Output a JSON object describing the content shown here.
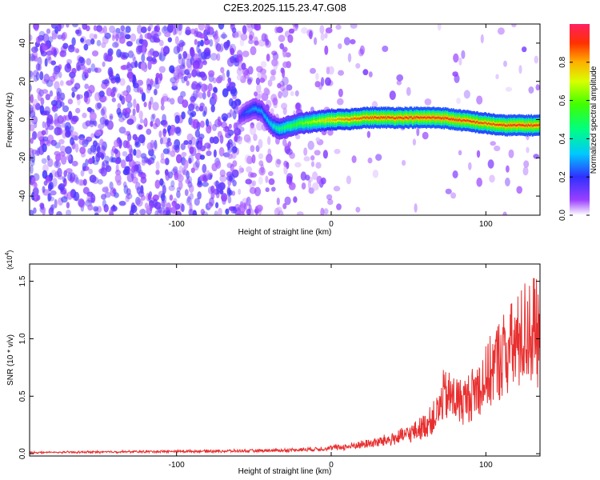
{
  "title": "C2E3.2025.115.23.47.G08",
  "chart_data": [
    {
      "type": "heatmap",
      "xlabel": "Height of straight line (km)",
      "ylabel": "Frequency (Hz)",
      "xlim": [
        -195,
        135
      ],
      "ylim": [
        -50,
        50
      ],
      "x_ticks": [
        -100,
        0,
        100
      ],
      "x_tick_labels": [
        "-100",
        "0",
        "100"
      ],
      "y_ticks": [
        -40,
        -20,
        0,
        20,
        40
      ],
      "y_tick_labels": [
        "-40",
        "-20",
        "0",
        "20",
        "40"
      ],
      "colorbar": {
        "label": "Normalized spectral amplitude",
        "range": [
          0.0,
          1.0
        ],
        "ticks": [
          0.0,
          0.2,
          0.4,
          0.6,
          0.8
        ],
        "tick_labels": [
          "0.0",
          "0.2",
          "0.4",
          "0.6",
          "0.8"
        ],
        "colormap": "rainbow"
      },
      "ridge": {
        "x": [
          -60,
          -55,
          -50,
          -45,
          -40,
          -35,
          -30,
          -25,
          -20,
          -10,
          0,
          10,
          20,
          30,
          40,
          50,
          60,
          70,
          80,
          90,
          100,
          110,
          120,
          135
        ],
        "y": [
          1,
          4,
          6,
          4,
          -2,
          -5,
          -4,
          -3,
          -2,
          -1,
          0,
          0,
          1,
          1,
          1,
          1,
          1,
          1,
          0,
          -1,
          -2,
          -3,
          -3,
          -3
        ],
        "amplitude": [
          0.15,
          0.25,
          0.3,
          0.3,
          0.35,
          0.45,
          0.5,
          0.55,
          0.6,
          0.7,
          0.8,
          0.85,
          0.88,
          0.9,
          0.9,
          0.92,
          0.92,
          0.93,
          0.92,
          0.9,
          0.88,
          0.9,
          0.92,
          0.9
        ]
      },
      "noise_region_x": [
        -195,
        0
      ],
      "noise_amplitude": 0.15,
      "grid": false
    },
    {
      "type": "line",
      "xlabel": "Height of straight line (km)",
      "ylabel": "SNR (10 * v/v)",
      "y_scale_label": "(x10",
      "y_scale_exponent": "4",
      "y_scale_suffix": ")",
      "xlim": [
        -195,
        135
      ],
      "ylim": [
        -0.02,
        1.65
      ],
      "x_ticks": [
        -100,
        0,
        100
      ],
      "x_tick_labels": [
        "-100",
        "0",
        "100"
      ],
      "y_ticks": [
        0.0,
        0.5,
        1.0,
        1.5
      ],
      "y_tick_labels": [
        "0.0",
        "0.5",
        "1.0",
        "1.5"
      ],
      "series": [
        {
          "color": "#e83030",
          "x": [
            -195,
            -150,
            -100,
            -50,
            -30,
            -10,
            0,
            10,
            20,
            30,
            40,
            50,
            55,
            60,
            65,
            70,
            72,
            75,
            80,
            85,
            90,
            95,
            100,
            105,
            110,
            115,
            120,
            125,
            130,
            135
          ],
          "y": [
            0.01,
            0.015,
            0.02,
            0.025,
            0.03,
            0.04,
            0.05,
            0.06,
            0.08,
            0.1,
            0.13,
            0.17,
            0.2,
            0.24,
            0.3,
            0.38,
            0.5,
            0.5,
            0.48,
            0.45,
            0.5,
            0.58,
            0.65,
            0.75,
            0.85,
            0.9,
            0.95,
            1.05,
            1.1,
            1.0
          ],
          "noise_fraction": 0.45
        }
      ],
      "grid": false
    }
  ]
}
